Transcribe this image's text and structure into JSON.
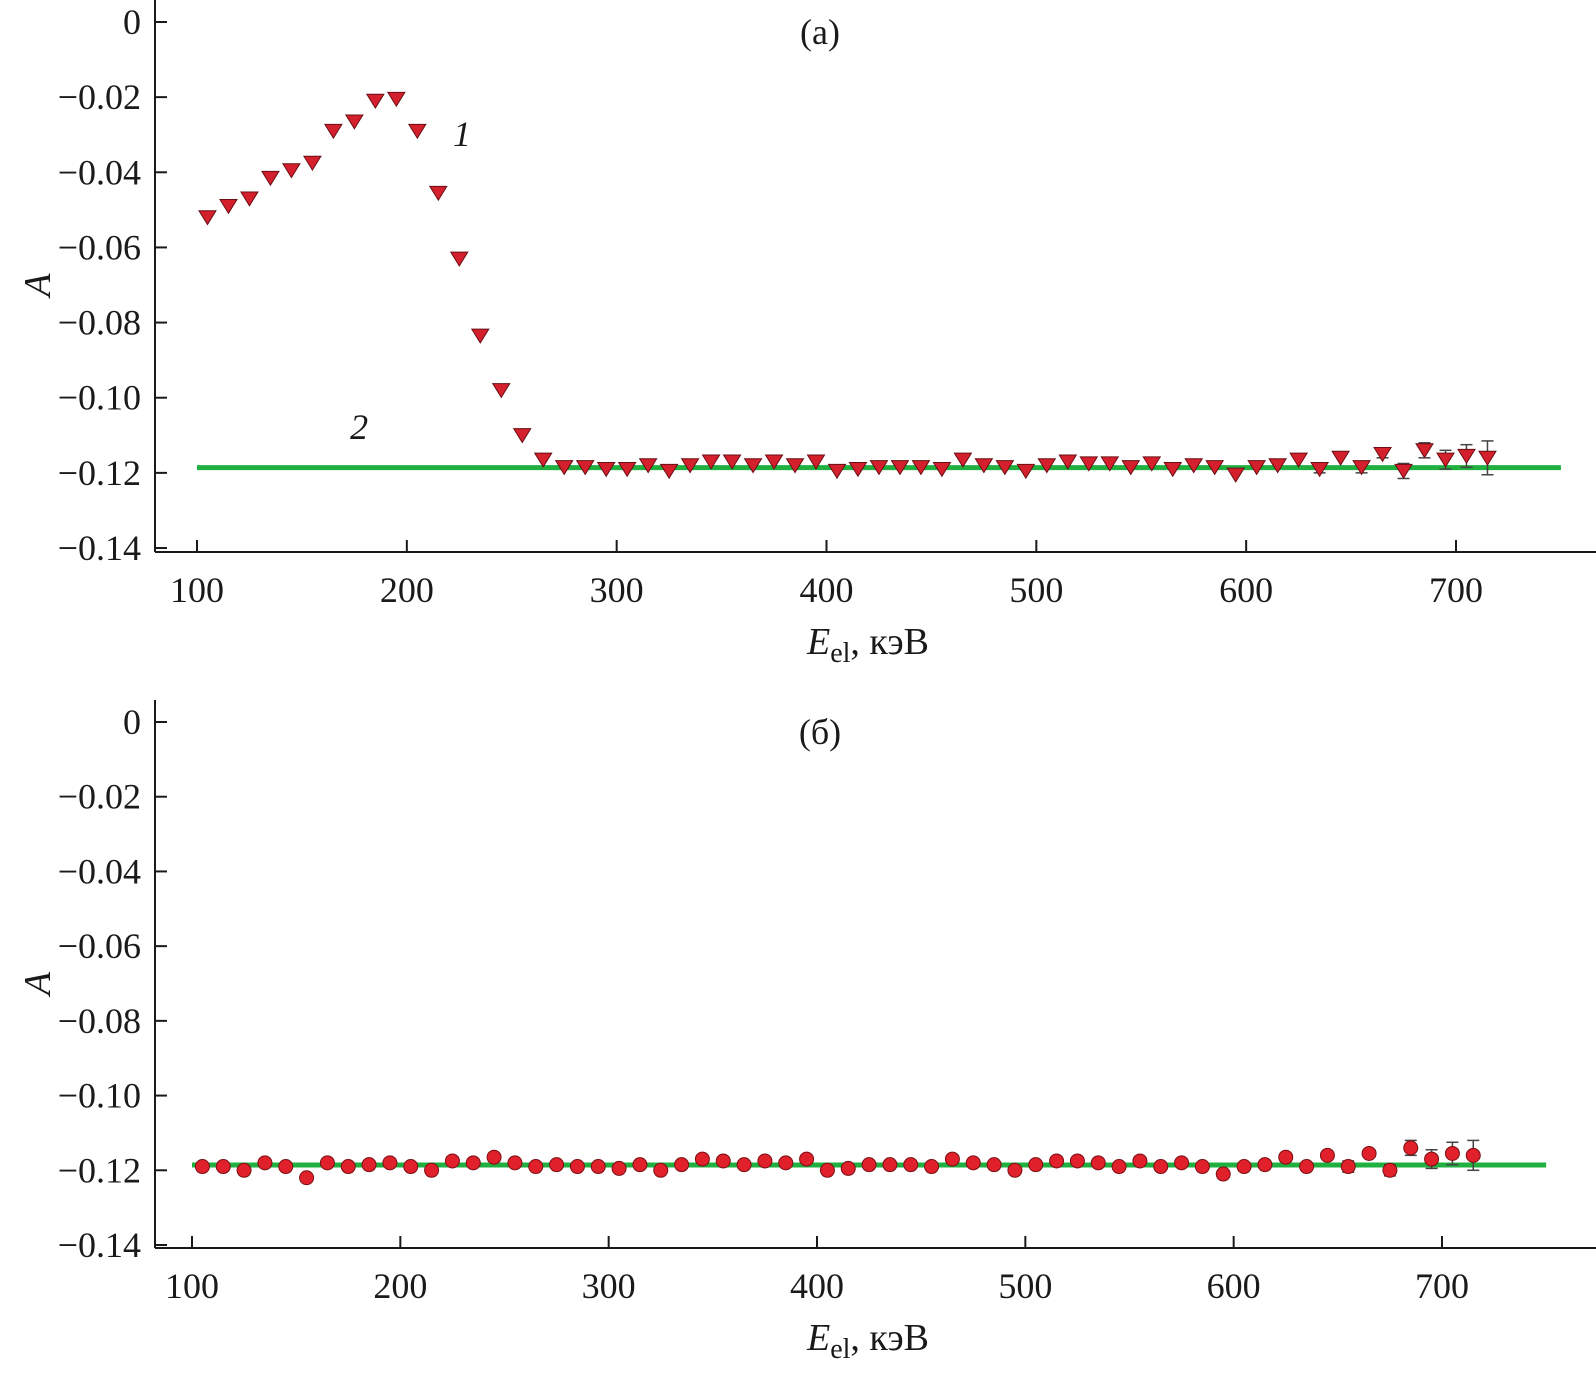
{
  "colors": {
    "fit_line": "#1fb040",
    "markers": "#d4202c",
    "axis": "#1a1a1a"
  },
  "chart_data": [
    {
      "type": "scatter",
      "panel_label": "(a)",
      "ylabel": "A",
      "xlabel_main": "E",
      "xlabel_sub": "el",
      "xlabel_unit": ", кэВ",
      "xlim": [
        80,
        750
      ],
      "ylim": [
        -0.14,
        0
      ],
      "x_ticks": [
        100,
        200,
        300,
        400,
        500,
        600,
        700
      ],
      "x_tick_labels": [
        "100",
        "200",
        "300",
        "400",
        "500",
        "600",
        "700"
      ],
      "y_ticks": [
        0,
        -0.02,
        -0.04,
        -0.06,
        -0.08,
        -0.1,
        -0.12,
        -0.14
      ],
      "y_tick_labels": [
        "0",
        "−0.02",
        "−0.04",
        "−0.06",
        "−0.08",
        "−0.10",
        "−0.12",
        "−0.14"
      ],
      "grid": false,
      "curve_labels": [
        {
          "text": "1",
          "x": 222,
          "y": -0.033
        },
        {
          "text": "2",
          "x": 173,
          "y": -0.111
        }
      ],
      "series": [
        {
          "marker": "triangle-down",
          "x": [
            105,
            115,
            125,
            135,
            145,
            155,
            165,
            175,
            185,
            195,
            205,
            215,
            225,
            235,
            245,
            255,
            265,
            275,
            285,
            295,
            305,
            315,
            325,
            335,
            345,
            355,
            365,
            375,
            385,
            395,
            405,
            415,
            425,
            435,
            445,
            455,
            465,
            475,
            485,
            495,
            505,
            515,
            525,
            535,
            545,
            555,
            565,
            575,
            585,
            595,
            605,
            615,
            625,
            635,
            645,
            655,
            665,
            675,
            685,
            695,
            705,
            715
          ],
          "y": [
            -0.052,
            -0.049,
            -0.047,
            -0.0415,
            -0.0395,
            -0.0375,
            -0.029,
            -0.0265,
            -0.021,
            -0.0205,
            -0.029,
            -0.0455,
            -0.063,
            -0.0835,
            -0.098,
            -0.11,
            -0.1165,
            -0.1185,
            -0.1185,
            -0.119,
            -0.119,
            -0.118,
            -0.1195,
            -0.118,
            -0.117,
            -0.117,
            -0.118,
            -0.117,
            -0.118,
            -0.117,
            -0.1195,
            -0.119,
            -0.1185,
            -0.1185,
            -0.1185,
            -0.119,
            -0.1165,
            -0.118,
            -0.1185,
            -0.1195,
            -0.118,
            -0.117,
            -0.1175,
            -0.1175,
            -0.1185,
            -0.1175,
            -0.119,
            -0.118,
            -0.1185,
            -0.1205,
            -0.1185,
            -0.118,
            -0.1165,
            -0.119,
            -0.116,
            -0.1185,
            -0.115,
            -0.1195,
            -0.114,
            -0.1165,
            -0.1155,
            -0.116
          ],
          "err": [
            0,
            0,
            0,
            0,
            0,
            0,
            0,
            0,
            0,
            0,
            0,
            0,
            0,
            0,
            0,
            0,
            0,
            0,
            0,
            0,
            0,
            0,
            0,
            0,
            0,
            0,
            0,
            0,
            0,
            0,
            0,
            0,
            0,
            0,
            0,
            0,
            0,
            0,
            0,
            0,
            0,
            0,
            0,
            0,
            0,
            0,
            0,
            0,
            0,
            0,
            0,
            0,
            0,
            0.001,
            0,
            0.0015,
            0.001,
            0.002,
            0.002,
            0.0025,
            0.003,
            0.0045
          ]
        },
        {
          "type": "line",
          "x": [
            100,
            750
          ],
          "y": [
            -0.1186,
            -0.1186
          ]
        }
      ]
    },
    {
      "type": "scatter",
      "panel_label": "(б)",
      "ylabel": "A",
      "xlabel_main": "E",
      "xlabel_sub": "el",
      "xlabel_unit": ", кэВ",
      "xlim": [
        80,
        750
      ],
      "ylim": [
        -0.14,
        0
      ],
      "x_ticks": [
        100,
        200,
        300,
        400,
        500,
        600,
        700
      ],
      "x_tick_labels": [
        "100",
        "200",
        "300",
        "400",
        "500",
        "600",
        "700"
      ],
      "y_ticks": [
        0,
        -0.02,
        -0.04,
        -0.06,
        -0.08,
        -0.1,
        -0.12,
        -0.14
      ],
      "y_tick_labels": [
        "0",
        "−0.02",
        "−0.04",
        "−0.06",
        "−0.08",
        "−0.10",
        "−0.12",
        "−0.14"
      ],
      "grid": false,
      "series": [
        {
          "marker": "circle",
          "x": [
            105,
            115,
            125,
            135,
            145,
            155,
            165,
            175,
            185,
            195,
            205,
            215,
            225,
            235,
            245,
            255,
            265,
            275,
            285,
            295,
            305,
            315,
            325,
            335,
            345,
            355,
            365,
            375,
            385,
            395,
            405,
            415,
            425,
            435,
            445,
            455,
            465,
            475,
            485,
            495,
            505,
            515,
            525,
            535,
            545,
            555,
            565,
            575,
            585,
            595,
            605,
            615,
            625,
            635,
            645,
            655,
            665,
            675,
            685,
            695,
            705,
            715
          ],
          "y": [
            -0.119,
            -0.119,
            -0.12,
            -0.118,
            -0.119,
            -0.122,
            -0.118,
            -0.119,
            -0.1185,
            -0.118,
            -0.119,
            -0.12,
            -0.1175,
            -0.118,
            -0.1165,
            -0.118,
            -0.119,
            -0.1185,
            -0.119,
            -0.119,
            -0.1195,
            -0.1185,
            -0.12,
            -0.1185,
            -0.117,
            -0.1175,
            -0.1185,
            -0.1175,
            -0.118,
            -0.117,
            -0.12,
            -0.1195,
            -0.1185,
            -0.1185,
            -0.1185,
            -0.119,
            -0.117,
            -0.118,
            -0.1185,
            -0.12,
            -0.1185,
            -0.1175,
            -0.1175,
            -0.118,
            -0.119,
            -0.1175,
            -0.119,
            -0.118,
            -0.119,
            -0.121,
            -0.119,
            -0.1185,
            -0.1165,
            -0.119,
            -0.116,
            -0.119,
            -0.1155,
            -0.12,
            -0.114,
            -0.117,
            -0.1155,
            -0.116
          ],
          "err": [
            0,
            0,
            0,
            0,
            0,
            0,
            0,
            0,
            0,
            0,
            0,
            0,
            0,
            0,
            0,
            0,
            0,
            0,
            0,
            0,
            0,
            0,
            0,
            0,
            0,
            0,
            0,
            0,
            0,
            0,
            0,
            0,
            0,
            0,
            0,
            0,
            0,
            0,
            0,
            0,
            0,
            0,
            0,
            0,
            0,
            0,
            0,
            0,
            0,
            0,
            0,
            0,
            0,
            0.001,
            0,
            0.0015,
            0.001,
            0.0015,
            0.002,
            0.0025,
            0.003,
            0.004
          ]
        },
        {
          "type": "line",
          "x": [
            100,
            750
          ],
          "y": [
            -0.1186,
            -0.1186
          ]
        }
      ]
    }
  ]
}
